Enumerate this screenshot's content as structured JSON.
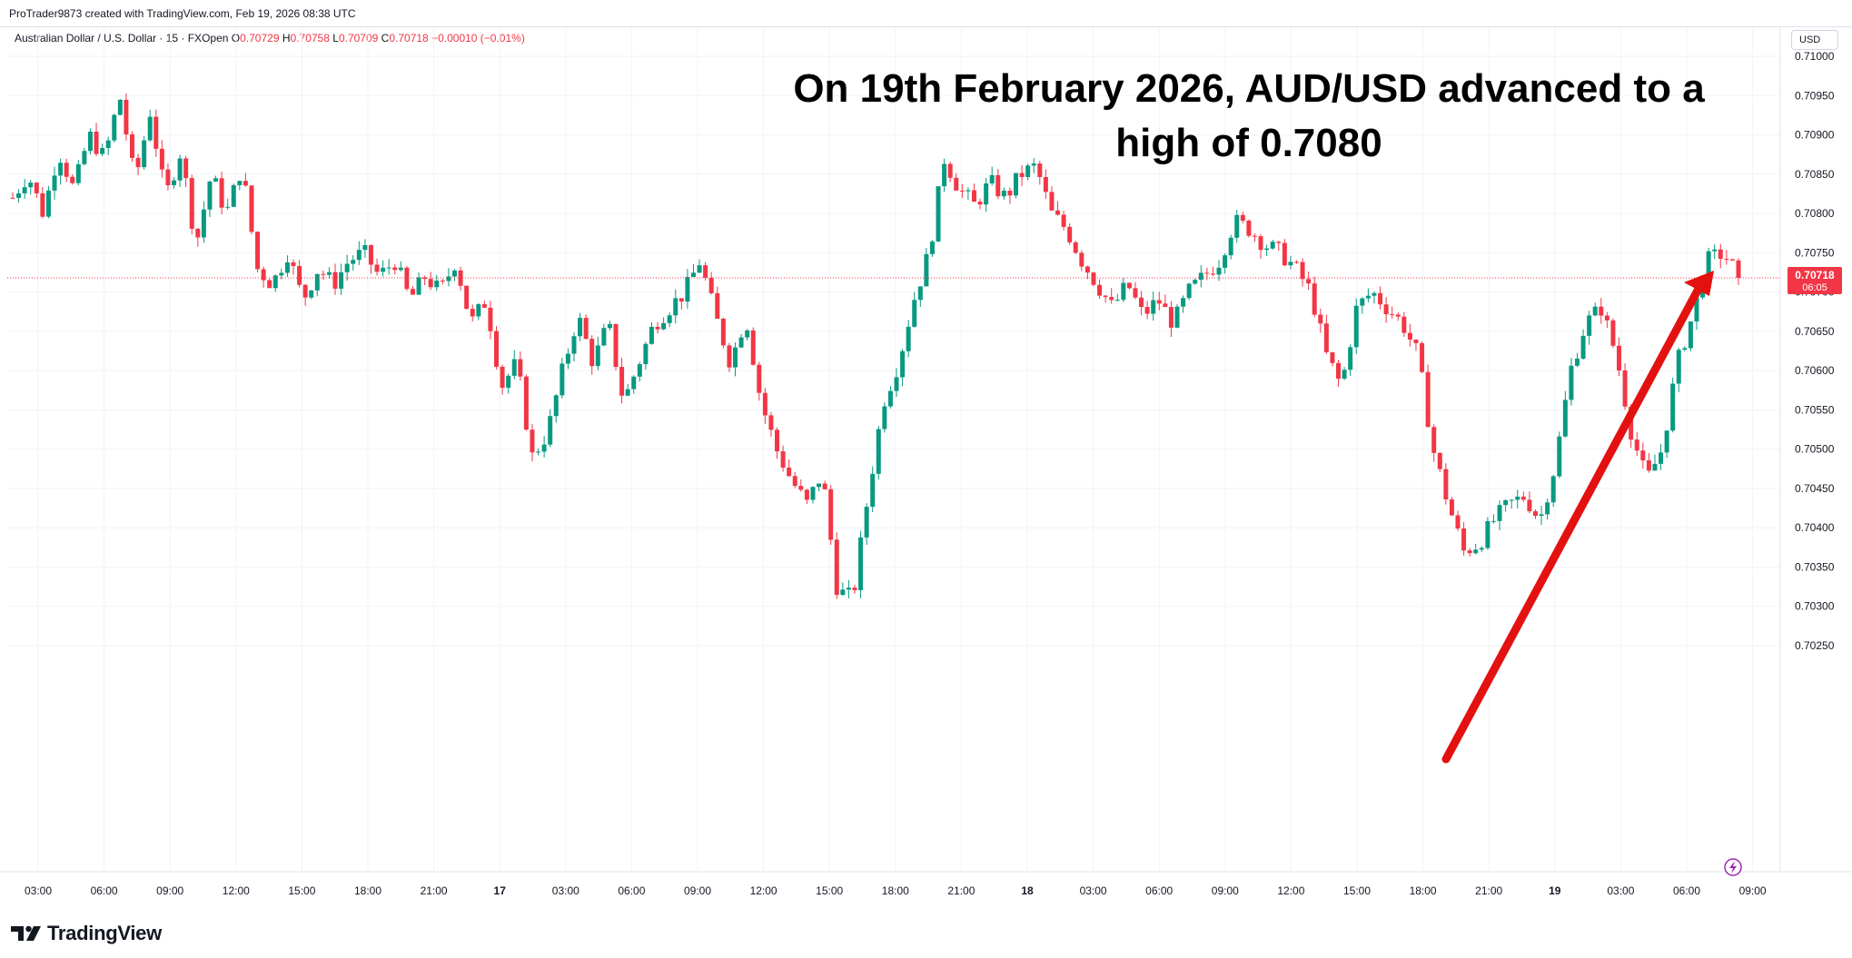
{
  "header": {
    "created_by": "ProTrader9873 created with TradingView.com, Feb 19, 2026 08:38 UTC",
    "symbol": "Australian Dollar / U.S. Dollar · 15 · FXOpen",
    "o_label": "O",
    "o_value": "0.70729",
    "h_label": "H",
    "h_value": "0.70758",
    "l_label": "L",
    "l_value": "0.70709",
    "c_label": "C",
    "c_value": "0.70718",
    "change": "−0.00010 (−0.01%)",
    "currency": "USD"
  },
  "logo": {
    "text": "TradingView",
    "icon": "tradingview-logo-icon"
  },
  "colors": {
    "up": "#089981",
    "down": "#f23645",
    "arrow": "#e3110f",
    "grid": "#f0f3fa",
    "axis_text": "#131722",
    "price_line": "#f23645"
  },
  "chart_data": {
    "type": "candlestick",
    "title": "On 19th February 2026, AUD/USD advanced to a high of 0.7080",
    "ylim": [
      0.7022,
      0.7108
    ],
    "y_ticks": [
      "0.71000",
      "0.70950",
      "0.70900",
      "0.70850",
      "0.70800",
      "0.70750",
      "0.70700",
      "0.70650",
      "0.70600",
      "0.70550",
      "0.70500",
      "0.70450",
      "0.70400",
      "0.70350",
      "0.70300",
      "0.70250"
    ],
    "x_ticks": [
      {
        "label": "03:00",
        "bold": false
      },
      {
        "label": "06:00",
        "bold": false
      },
      {
        "label": "09:00",
        "bold": false
      },
      {
        "label": "12:00",
        "bold": false
      },
      {
        "label": "15:00",
        "bold": false
      },
      {
        "label": "18:00",
        "bold": false
      },
      {
        "label": "21:00",
        "bold": false
      },
      {
        "label": "17",
        "bold": true
      },
      {
        "label": "03:00",
        "bold": false
      },
      {
        "label": "06:00",
        "bold": false
      },
      {
        "label": "09:00",
        "bold": false
      },
      {
        "label": "12:00",
        "bold": false
      },
      {
        "label": "15:00",
        "bold": false
      },
      {
        "label": "18:00",
        "bold": false
      },
      {
        "label": "21:00",
        "bold": false
      },
      {
        "label": "18",
        "bold": true
      },
      {
        "label": "03:00",
        "bold": false
      },
      {
        "label": "06:00",
        "bold": false
      },
      {
        "label": "09:00",
        "bold": false
      },
      {
        "label": "12:00",
        "bold": false
      },
      {
        "label": "15:00",
        "bold": false
      },
      {
        "label": "18:00",
        "bold": false
      },
      {
        "label": "21:00",
        "bold": false
      },
      {
        "label": "19",
        "bold": true
      },
      {
        "label": "03:00",
        "bold": false
      },
      {
        "label": "06:00",
        "bold": false
      },
      {
        "label": "09:00",
        "bold": false
      }
    ],
    "last_price": "0.70718",
    "countdown": "06:05",
    "path": [
      0.7082,
      0.7085,
      0.708,
      0.7088,
      0.7083,
      0.709,
      0.7087,
      0.7095,
      0.7084,
      0.7093,
      0.7082,
      0.7088,
      0.7076,
      0.7085,
      0.708,
      0.7086,
      0.7073,
      0.7071,
      0.7075,
      0.7069,
      0.7073,
      0.7071,
      0.7074,
      0.7075,
      0.7072,
      0.7074,
      0.7069,
      0.7072,
      0.707,
      0.7074,
      0.7066,
      0.7069,
      0.7058,
      0.7061,
      0.7049,
      0.7052,
      0.706,
      0.7067,
      0.7061,
      0.7066,
      0.7056,
      0.7061,
      0.7066,
      0.7068,
      0.707,
      0.7074,
      0.7067,
      0.7061,
      0.7067,
      0.7056,
      0.705,
      0.7046,
      0.7043,
      0.7047,
      0.7032,
      0.7031,
      0.7044,
      0.7056,
      0.7061,
      0.7069,
      0.7075,
      0.7087,
      0.7083,
      0.7081,
      0.7084,
      0.7082,
      0.7085,
      0.7086,
      0.708,
      0.7078,
      0.7074,
      0.7071,
      0.7068,
      0.7071,
      0.7067,
      0.7069,
      0.7066,
      0.707,
      0.7072,
      0.7074,
      0.7079,
      0.7078,
      0.7076,
      0.7075,
      0.7073,
      0.707,
      0.7062,
      0.7058,
      0.7068,
      0.707,
      0.7068,
      0.7066,
      0.7062,
      0.705,
      0.7043,
      0.7037,
      0.7038,
      0.7041,
      0.7043,
      0.7044,
      0.7041,
      0.7048,
      0.706,
      0.7066,
      0.7068,
      0.7062,
      0.7052,
      0.7046,
      0.705,
      0.7061,
      0.7067,
      0.7074,
      0.7075,
      0.7072
    ]
  }
}
